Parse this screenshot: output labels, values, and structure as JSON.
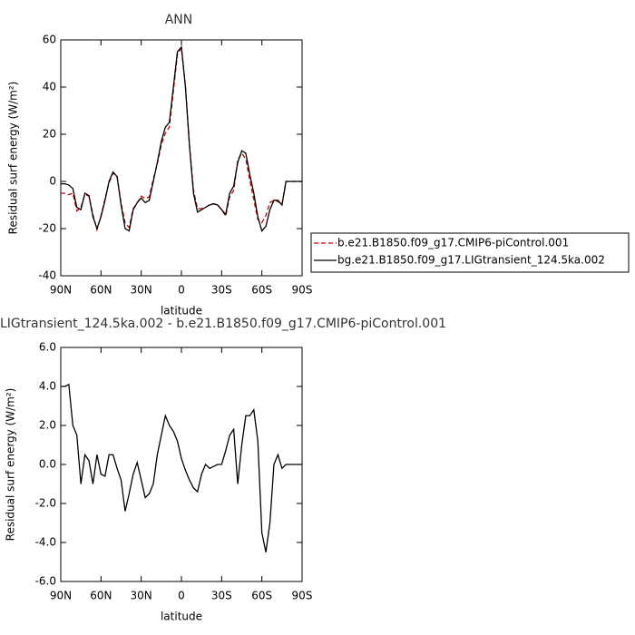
{
  "chart_data": [
    {
      "type": "line",
      "title": "ANN",
      "xlabel": "latitude",
      "ylabel": "Residual surf energy (W/m²)",
      "x": [
        90,
        87,
        84,
        81,
        78,
        75,
        72,
        69,
        66,
        63,
        60,
        57,
        54,
        51,
        48,
        45,
        42,
        39,
        36,
        33,
        30,
        27,
        24,
        21,
        18,
        15,
        12,
        9,
        6,
        3,
        0,
        -3,
        -6,
        -9,
        -12,
        -15,
        -18,
        -21,
        -24,
        -27,
        -30,
        -33,
        -36,
        -39,
        -42,
        -45,
        -48,
        -51,
        -54,
        -57,
        -60,
        -63,
        -66,
        -69,
        -72,
        -75,
        -78,
        -81,
        -84,
        -87,
        -90
      ],
      "series": [
        {
          "name": "b.e21.B1850.f09_g17.CMIP6-piControl.001",
          "color": "#cc0000",
          "dashed": true,
          "values": [
            -5,
            -5,
            -5.6,
            -5,
            -12.5,
            -11,
            -5.5,
            -6.2,
            -14,
            -20.5,
            -14.5,
            -7.4,
            -0.5,
            3.5,
            2.2,
            -9.2,
            -17.6,
            -19.5,
            -11.5,
            -9.1,
            -6.2,
            -7.3,
            -6.5,
            1,
            7.5,
            15.5,
            20.5,
            23,
            38.3,
            53.8,
            56.7,
            40.3,
            15.8,
            -3.8,
            -11.6,
            -11.5,
            -11,
            -9.8,
            -9.4,
            -10,
            -12,
            -14.7,
            -6.5,
            -3.8,
            9,
            12,
            9.5,
            0.5,
            -7.8,
            -16.2,
            -17.5,
            -14.5,
            -9,
            -8,
            -8.5,
            -9.8,
            0,
            0,
            0,
            0,
            0
          ]
        },
        {
          "name": "bg.e21.B1850.f09_g17.LIGtransient_124.5ka.002",
          "color": "#000000",
          "dashed": false,
          "values": [
            -1,
            -1,
            -1.5,
            -3,
            -11,
            -12,
            -5,
            -6,
            -15,
            -20,
            -15,
            -8,
            0,
            4,
            2,
            -10,
            -20,
            -21,
            -12,
            -9,
            -7,
            -9,
            -8,
            0,
            8,
            17,
            23,
            25,
            40,
            55,
            57,
            40,
            15,
            -5,
            -13,
            -12,
            -11,
            -10,
            -9.5,
            -10,
            -12,
            -14,
            -5,
            -2,
            8,
            13,
            12,
            3,
            -5,
            -15,
            -21,
            -19,
            -12,
            -8,
            -8,
            -10,
            0,
            0,
            0,
            0,
            0
          ]
        }
      ],
      "xlim": [
        90,
        -90
      ],
      "xticks": [
        {
          "value": 90,
          "label": "90N"
        },
        {
          "value": 60,
          "label": "60N"
        },
        {
          "value": 30,
          "label": "30N"
        },
        0,
        {
          "value": -30,
          "label": "30S"
        },
        {
          "value": -60,
          "label": "60S"
        },
        {
          "value": -90,
          "label": "90S"
        }
      ],
      "ylim": [
        -40,
        60
      ],
      "yticks": [
        -40,
        -20,
        0,
        20,
        40,
        60
      ],
      "legend": "right"
    },
    {
      "type": "line",
      "title": "LIGtransient_124.5ka.002 - b.e21.B1850.f09_g17.CMIP6-piControl.001",
      "xlabel": "latitude",
      "ylabel": "Residual surf energy (W/m²)",
      "x": [
        90,
        87,
        84,
        81,
        78,
        75,
        72,
        69,
        66,
        63,
        60,
        57,
        54,
        51,
        48,
        45,
        42,
        39,
        36,
        33,
        30,
        27,
        24,
        21,
        18,
        15,
        12,
        9,
        6,
        3,
        0,
        -3,
        -6,
        -9,
        -12,
        -15,
        -18,
        -21,
        -24,
        -27,
        -30,
        -33,
        -36,
        -39,
        -42,
        -45,
        -48,
        -51,
        -54,
        -57,
        -60,
        -63,
        -66,
        -69,
        -72,
        -75,
        -78,
        -81,
        -84,
        -87,
        -90
      ],
      "series": [
        {
          "color": "#000000",
          "dashed": false,
          "values": [
            4,
            4,
            4.1,
            2,
            1.5,
            -1,
            0.5,
            0.2,
            -1,
            0.5,
            -0.5,
            -0.6,
            0.5,
            0.5,
            -0.2,
            -0.8,
            -2.4,
            -1.5,
            -0.5,
            0.1,
            -0.8,
            -1.7,
            -1.5,
            -1,
            0.5,
            1.5,
            2.5,
            2,
            1.7,
            1.2,
            0.3,
            -0.3,
            -0.8,
            -1.2,
            -1.4,
            -0.5,
            0,
            -0.2,
            -0.1,
            0,
            0,
            0.7,
            1.5,
            1.8,
            -1,
            1,
            2.5,
            2.5,
            2.8,
            1.2,
            -3.5,
            -4.5,
            -3,
            0,
            0.5,
            -0.2,
            0,
            0,
            0,
            0,
            0
          ]
        }
      ],
      "xlim": [
        90,
        -90
      ],
      "xticks": [
        {
          "value": 90,
          "label": "90N"
        },
        {
          "value": 60,
          "label": "60N"
        },
        {
          "value": 30,
          "label": "30N"
        },
        0,
        {
          "value": -30,
          "label": "30S"
        },
        {
          "value": -60,
          "label": "60S"
        },
        {
          "value": -90,
          "label": "90S"
        }
      ],
      "ylim": [
        -6,
        6
      ],
      "yticks": [
        {
          "value": -6,
          "label": "-6.0"
        },
        {
          "value": -4,
          "label": "-4.0"
        },
        {
          "value": -2,
          "label": "-2.0"
        },
        {
          "value": 0,
          "label": "0.0"
        },
        {
          "value": 2,
          "label": "2.0"
        },
        {
          "value": 4,
          "label": "4.0"
        },
        {
          "value": 6,
          "label": "6.0"
        }
      ]
    }
  ]
}
